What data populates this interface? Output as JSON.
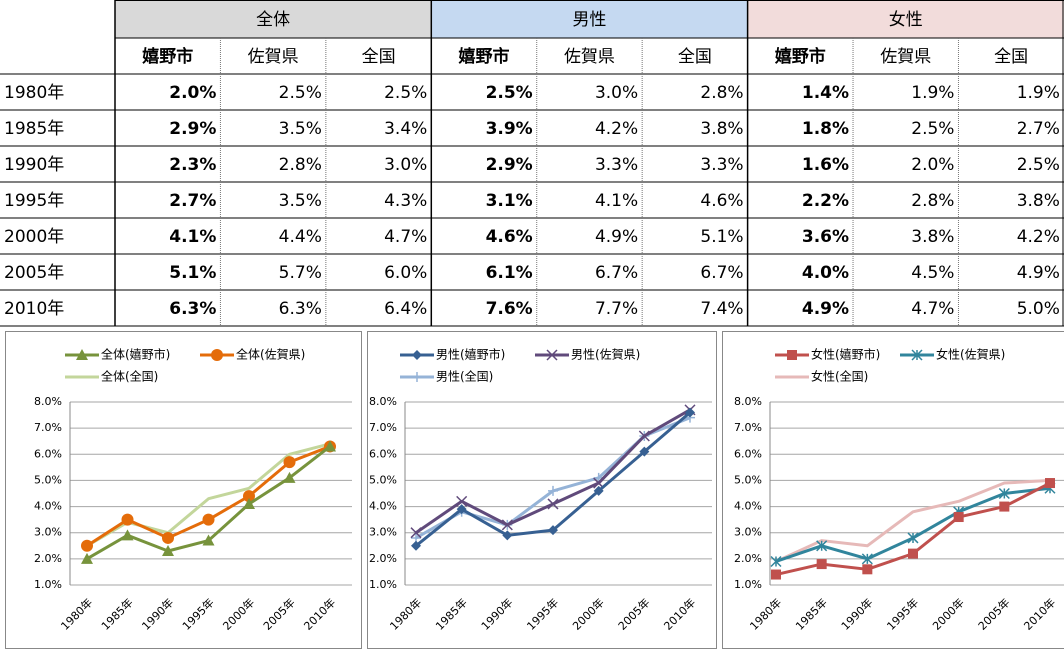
{
  "table": {
    "groups": [
      "全体",
      "男性",
      "女性"
    ],
    "subheaders": [
      "嬉野市",
      "佐賀県",
      "全国",
      "嬉野市",
      "佐賀県",
      "全国",
      "嬉野市",
      "佐賀県",
      "全国"
    ],
    "rows": [
      [
        "1980年",
        "2.0%",
        "2.5%",
        "2.5%",
        "2.5%",
        "3.0%",
        "2.8%",
        "1.4%",
        "1.9%",
        "1.9%"
      ],
      [
        "1985年",
        "2.9%",
        "3.5%",
        "3.4%",
        "3.9%",
        "4.2%",
        "3.8%",
        "1.8%",
        "2.5%",
        "2.7%"
      ],
      [
        "1990年",
        "2.3%",
        "2.8%",
        "3.0%",
        "2.9%",
        "3.3%",
        "3.3%",
        "1.6%",
        "2.0%",
        "2.5%"
      ],
      [
        "1995年",
        "2.7%",
        "3.5%",
        "4.3%",
        "3.1%",
        "4.1%",
        "4.6%",
        "2.2%",
        "2.8%",
        "3.8%"
      ],
      [
        "2000年",
        "4.1%",
        "4.4%",
        "4.7%",
        "4.6%",
        "4.9%",
        "5.1%",
        "3.6%",
        "3.8%",
        "4.2%"
      ],
      [
        "2005年",
        "5.1%",
        "5.7%",
        "6.0%",
        "6.1%",
        "6.7%",
        "6.7%",
        "4.0%",
        "4.5%",
        "4.9%"
      ],
      [
        "2010年",
        "6.3%",
        "6.3%",
        "6.4%",
        "7.6%",
        "7.7%",
        "7.4%",
        "4.9%",
        "4.7%",
        "5.0%"
      ]
    ]
  },
  "chart_data": [
    {
      "type": "line",
      "categories": [
        "1980年",
        "1985年",
        "1990年",
        "1995年",
        "2000年",
        "2005年",
        "2010年"
      ],
      "series": [
        {
          "name": "全体(嬉野市)",
          "color": "#77933c",
          "marker": "triangle",
          "values": [
            2.0,
            2.9,
            2.3,
            2.7,
            4.1,
            5.1,
            6.3
          ]
        },
        {
          "name": "全体(佐賀県)",
          "color": "#e46c0a",
          "marker": "circle",
          "values": [
            2.5,
            3.5,
            2.8,
            3.5,
            4.4,
            5.7,
            6.3
          ]
        },
        {
          "name": "全体(全国)",
          "color": "#c3d69b",
          "marker": "none",
          "values": [
            2.5,
            3.4,
            3.0,
            4.3,
            4.7,
            6.0,
            6.4
          ]
        }
      ],
      "ylim": [
        1,
        8
      ],
      "yticks": [
        {
          "value": 1,
          "label": "1.0%"
        },
        {
          "value": 2,
          "label": "2.0%"
        },
        {
          "value": 3,
          "label": "3.0%"
        },
        {
          "value": 4,
          "label": "4.0%"
        },
        {
          "value": 5,
          "label": "5.0%"
        },
        {
          "value": 6,
          "label": "6.0%"
        },
        {
          "value": 7,
          "label": "7.0%"
        },
        {
          "value": 8,
          "label": "8.0%"
        }
      ],
      "grid": true
    },
    {
      "type": "line",
      "categories": [
        "1980年",
        "1985年",
        "1990年",
        "1995年",
        "2000年",
        "2005年",
        "2010年"
      ],
      "series": [
        {
          "name": "男性(嬉野市)",
          "color": "#376092",
          "marker": "diamond",
          "values": [
            2.5,
            3.9,
            2.9,
            3.1,
            4.6,
            6.1,
            7.6
          ]
        },
        {
          "name": "男性(佐賀県)",
          "color": "#604a7b",
          "marker": "x",
          "values": [
            3.0,
            4.2,
            3.3,
            4.1,
            4.9,
            6.7,
            7.7
          ]
        },
        {
          "name": "男性(全国)",
          "color": "#95b3d7",
          "marker": "plus",
          "values": [
            2.8,
            3.8,
            3.3,
            4.6,
            5.1,
            6.7,
            7.4
          ]
        }
      ],
      "ylim": [
        1,
        8
      ],
      "yticks": [
        {
          "value": 1,
          "label": "1.0%"
        },
        {
          "value": 2,
          "label": "2.0%"
        },
        {
          "value": 3,
          "label": "3.0%"
        },
        {
          "value": 4,
          "label": "4.0%"
        },
        {
          "value": 5,
          "label": "5.0%"
        },
        {
          "value": 6,
          "label": "6.0%"
        },
        {
          "value": 7,
          "label": "7.0%"
        },
        {
          "value": 8,
          "label": "8.0%"
        }
      ],
      "grid": true
    },
    {
      "type": "line",
      "categories": [
        "1980年",
        "1985年",
        "1990年",
        "1995年",
        "2000年",
        "2005年",
        "2010年"
      ],
      "series": [
        {
          "name": "女性(嬉野市)",
          "color": "#c0504d",
          "marker": "square",
          "values": [
            1.4,
            1.8,
            1.6,
            2.2,
            3.6,
            4.0,
            4.9
          ]
        },
        {
          "name": "女性(佐賀県)",
          "color": "#31859c",
          "marker": "star",
          "values": [
            1.9,
            2.5,
            2.0,
            2.8,
            3.8,
            4.5,
            4.7
          ]
        },
        {
          "name": "女性(全国)",
          "color": "#e6b9b8",
          "marker": "none",
          "values": [
            1.9,
            2.7,
            2.5,
            3.8,
            4.2,
            4.9,
            5.0
          ]
        }
      ],
      "ylim": [
        1,
        8
      ],
      "yticks": [
        {
          "value": 1,
          "label": "1.0%"
        },
        {
          "value": 2,
          "label": "2.0%"
        },
        {
          "value": 3,
          "label": "3.0%"
        },
        {
          "value": 4,
          "label": "4.0%"
        },
        {
          "value": 5,
          "label": "5.0%"
        },
        {
          "value": 6,
          "label": "6.0%"
        },
        {
          "value": 7,
          "label": "7.0%"
        },
        {
          "value": 8,
          "label": "8.0%"
        }
      ],
      "grid": true
    }
  ]
}
